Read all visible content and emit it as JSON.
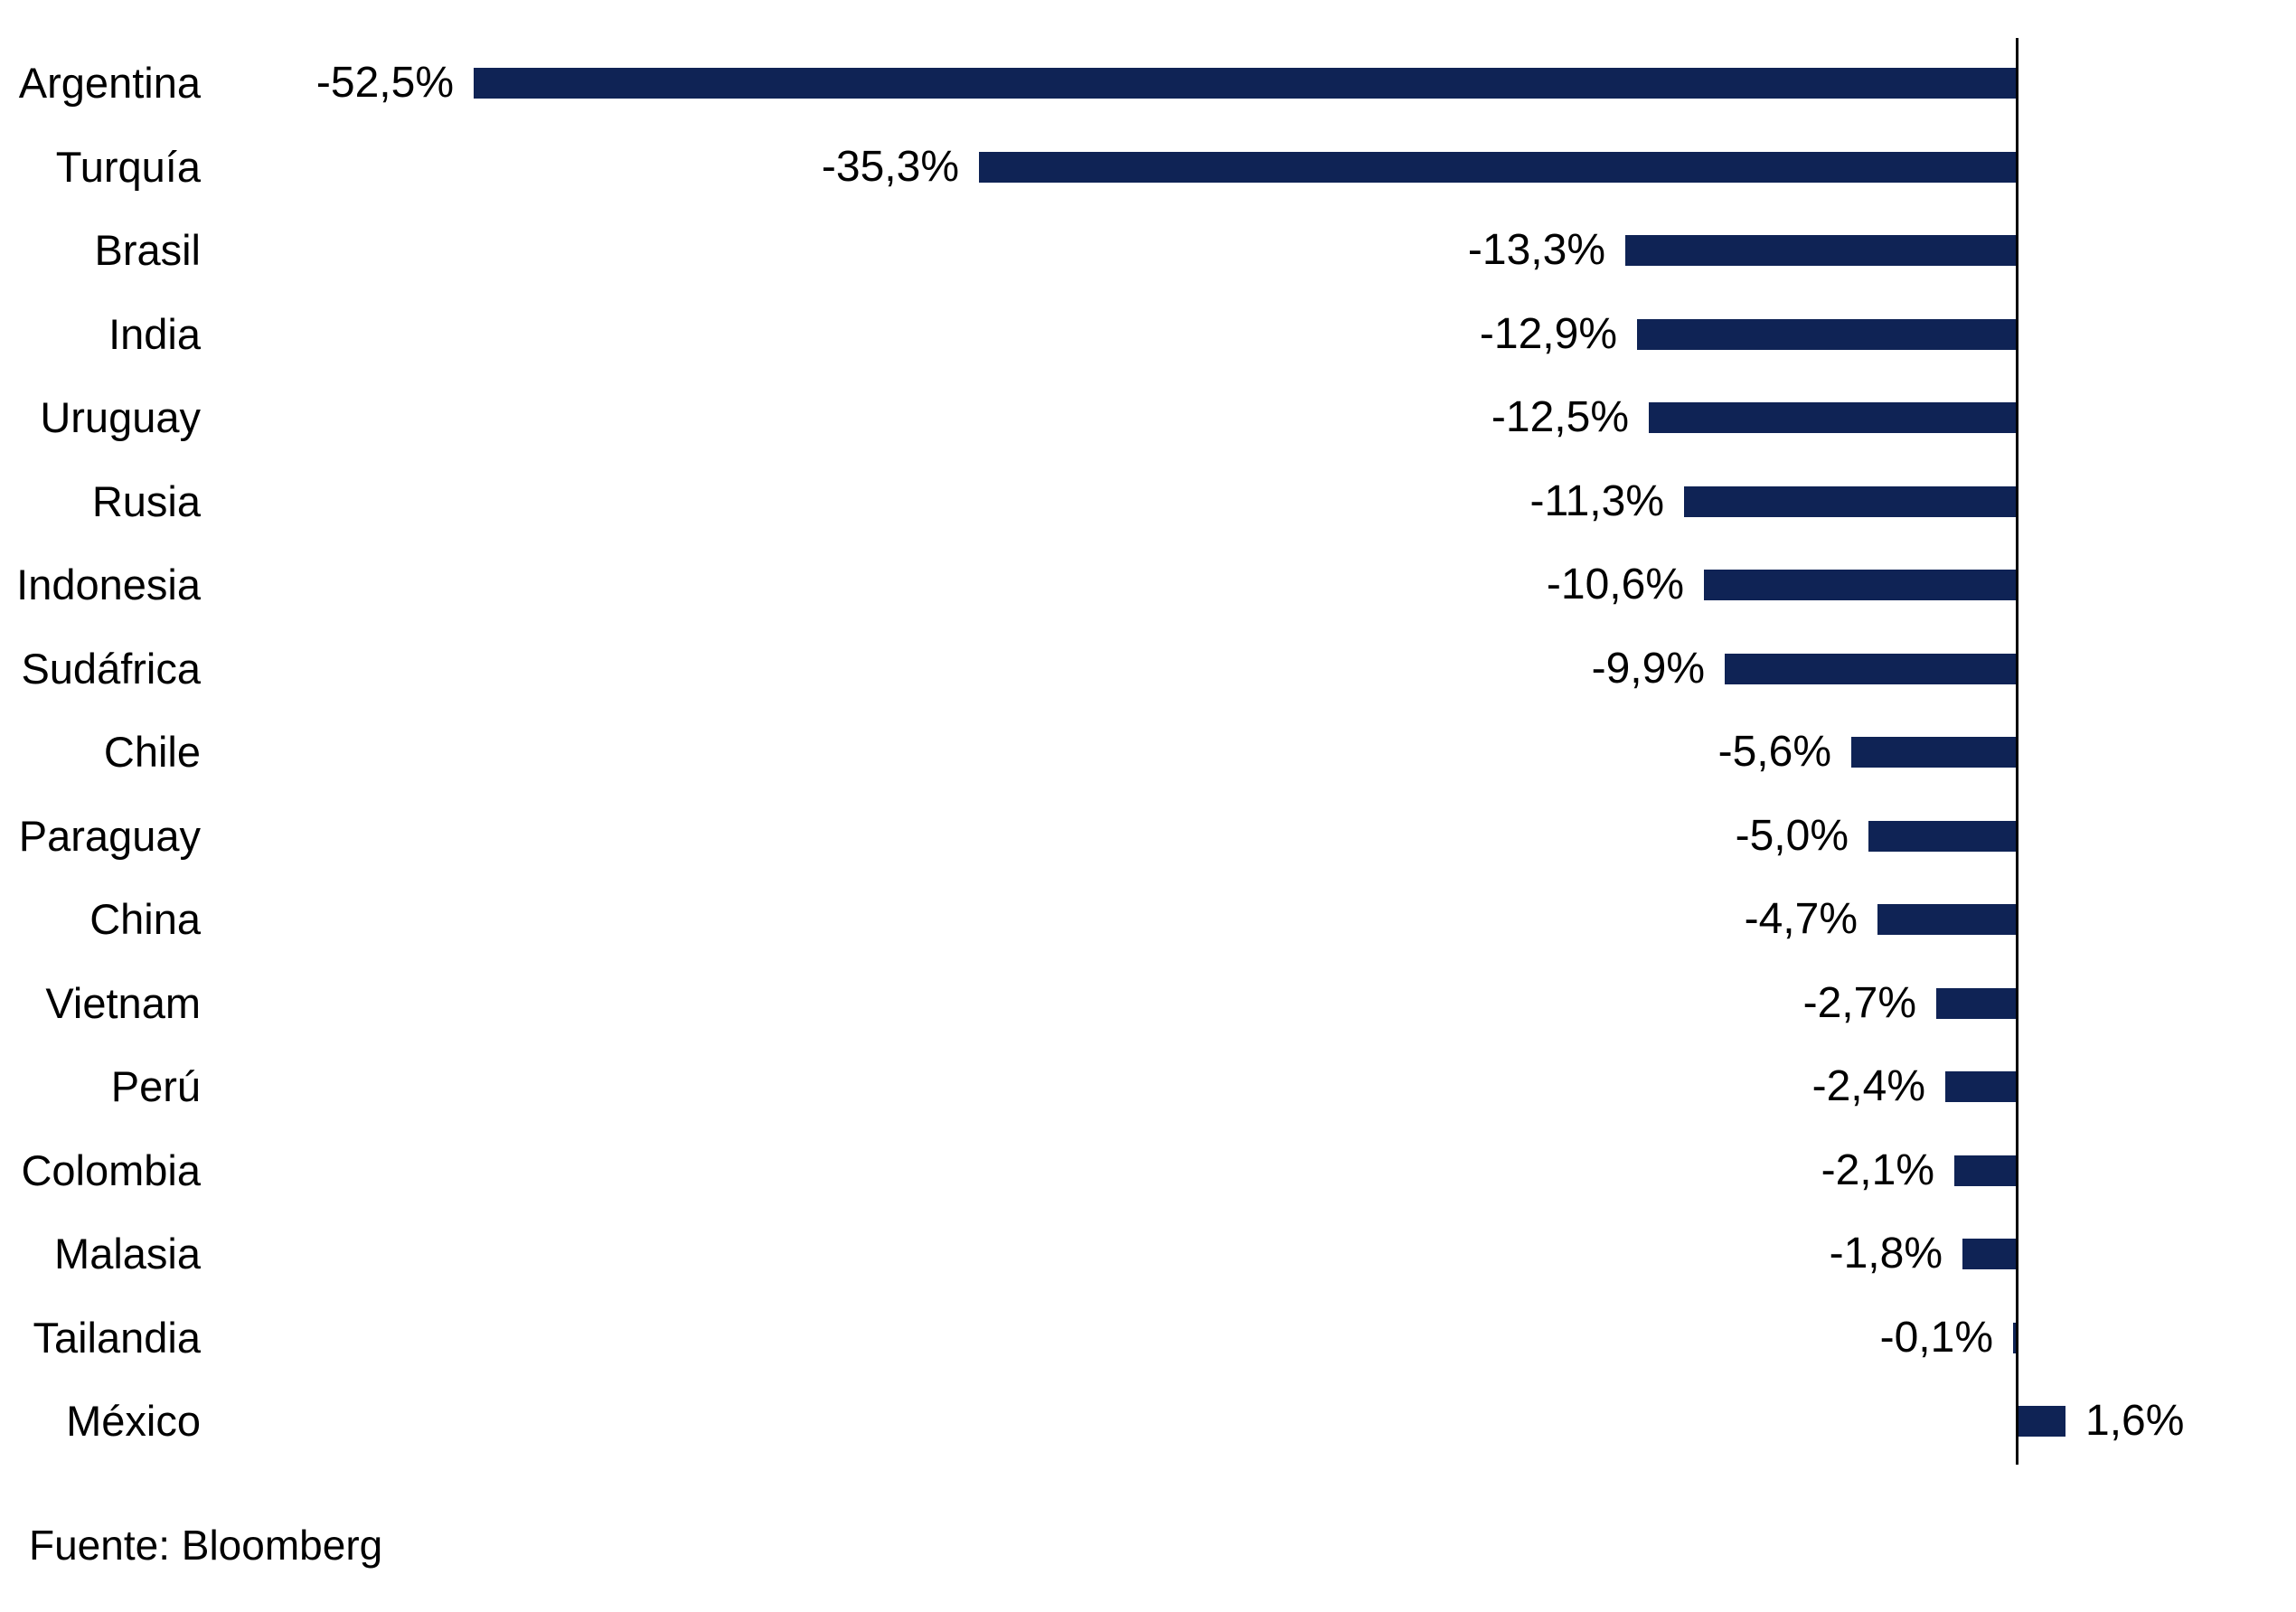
{
  "chart_data": {
    "type": "bar",
    "orientation": "horizontal",
    "title": "",
    "xlabel": "",
    "ylabel": "",
    "grid": false,
    "legend": "none",
    "xlim": [
      -55,
      5
    ],
    "value_format": "percent-comma-decimal",
    "categories": [
      "Argentina",
      "Turquía",
      "Brasil",
      "India",
      "Uruguay",
      "Rusia",
      "Indonesia",
      "Sudáfrica",
      "Chile",
      "Paraguay",
      "China",
      "Vietnam",
      "Perú",
      "Colombia",
      "Malasia",
      "Tailandia",
      "México"
    ],
    "values": [
      -52.5,
      -35.3,
      -13.3,
      -12.9,
      -12.5,
      -11.3,
      -10.6,
      -9.9,
      -5.6,
      -5.0,
      -4.7,
      -2.7,
      -2.4,
      -2.1,
      -1.8,
      -0.1,
      1.6
    ],
    "value_labels": [
      "-52,5%",
      "-35,3%",
      "-13,3%",
      "-12,9%",
      "-12,5%",
      "-11,3%",
      "-10,6%",
      "-9,9%",
      "-5,6%",
      "-5,0%",
      "-4,7%",
      "-2,7%",
      "-2,4%",
      "-2,1%",
      "-1,8%",
      "-0,1%",
      "1,6%"
    ],
    "colors": {
      "bar": "#0F2355",
      "axis": "#000000",
      "text": "#000000"
    }
  },
  "footer": {
    "source_label": "Fuente: Bloomberg"
  }
}
